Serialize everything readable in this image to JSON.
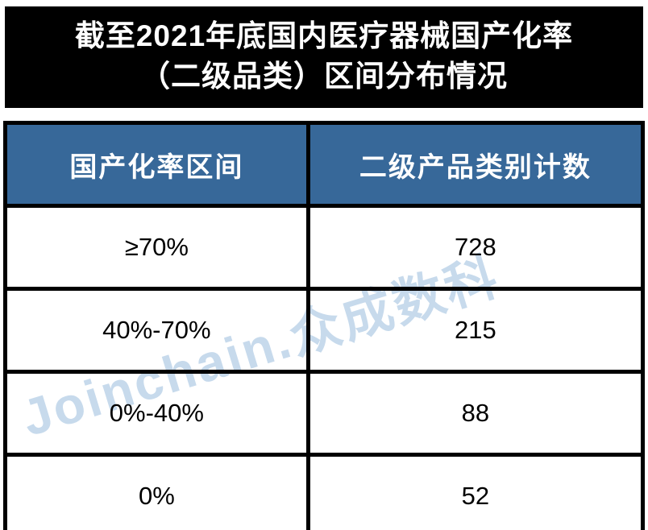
{
  "title": {
    "line1": "截至2021年底国内医疗器械国产化率",
    "line2": "（二级品类）区间分布情况"
  },
  "table": {
    "headers": [
      "国产化率区间",
      "二级产品类别计数"
    ],
    "rows": [
      [
        "≥70%",
        "728"
      ],
      [
        "40%-70%",
        "215"
      ],
      [
        "0%-40%",
        "88"
      ],
      [
        "0%",
        "52"
      ]
    ]
  },
  "watermark": "Joinchain.众成数科",
  "colors": {
    "title_bg": "#000000",
    "header_bg": "#376899",
    "header_text": "#ffffff",
    "border": "#000000",
    "watermark": "#c7daec"
  },
  "chart_data": {
    "type": "table",
    "title": "截至2021年底国内医疗器械国产化率（二级品类）区间分布情况",
    "columns": [
      "国产化率区间",
      "二级产品类别计数"
    ],
    "rows": [
      [
        "≥70%",
        728
      ],
      [
        "40%-70%",
        215
      ],
      [
        "0%-40%",
        88
      ],
      [
        "0%",
        52
      ]
    ]
  }
}
